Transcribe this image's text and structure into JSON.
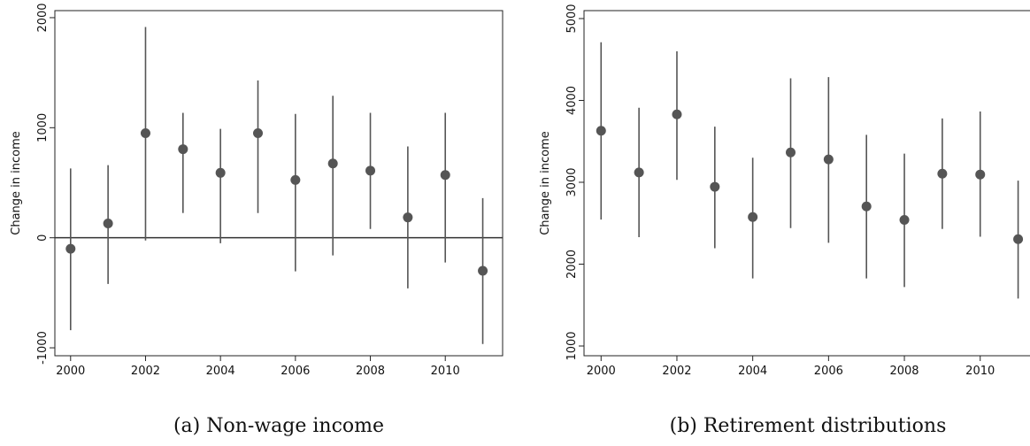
{
  "chart_data": [
    {
      "type": "errorbar",
      "caption": "(a) Non-wage income",
      "y_label": "Change in income",
      "x": [
        2000,
        2001,
        2002,
        2003,
        2004,
        2005,
        2006,
        2007,
        2008,
        2009,
        2010,
        2011
      ],
      "values": [
        -100,
        130,
        950,
        805,
        590,
        950,
        525,
        675,
        610,
        185,
        570,
        -300
      ],
      "lower": [
        -840,
        -420,
        -25,
        225,
        -50,
        225,
        -305,
        -160,
        80,
        -460,
        -225,
        -965
      ],
      "upper": [
        630,
        660,
        1915,
        1135,
        990,
        1430,
        1125,
        1290,
        1135,
        830,
        1135,
        360
      ],
      "color": "#555555",
      "reference_line": 0,
      "xlim": [
        1999.58,
        2011.53
      ],
      "xticks": [
        2000,
        2002,
        2004,
        2006,
        2008,
        2010
      ],
      "ylim": [
        -1072,
        2064
      ],
      "yticks": [
        -1000,
        0,
        1000,
        2000
      ]
    },
    {
      "type": "errorbar",
      "caption": "(b) Retirement distributions",
      "y_label": "Change in income",
      "x": [
        2000,
        2001,
        2002,
        2003,
        2004,
        2005,
        2006,
        2007,
        2008,
        2009,
        2010,
        2011
      ],
      "values": [
        3630,
        3120,
        3830,
        2945,
        2575,
        3365,
        3280,
        2705,
        2540,
        3105,
        3095,
        2305
      ],
      "lower": [
        2545,
        2330,
        3030,
        2195,
        1825,
        2440,
        2260,
        1825,
        1720,
        2430,
        2335,
        1580
      ],
      "upper": [
        4710,
        3910,
        4600,
        3680,
        3300,
        4270,
        4285,
        3580,
        3350,
        3780,
        3865,
        3020
      ],
      "color": "#555555",
      "xlim": [
        1999.55,
        2011.36
      ],
      "xticks": [
        2000,
        2002,
        2004,
        2006,
        2008,
        2010
      ],
      "ylim": [
        881,
        5097
      ],
      "yticks": [
        1000,
        2000,
        3000,
        4000,
        5000
      ]
    }
  ]
}
